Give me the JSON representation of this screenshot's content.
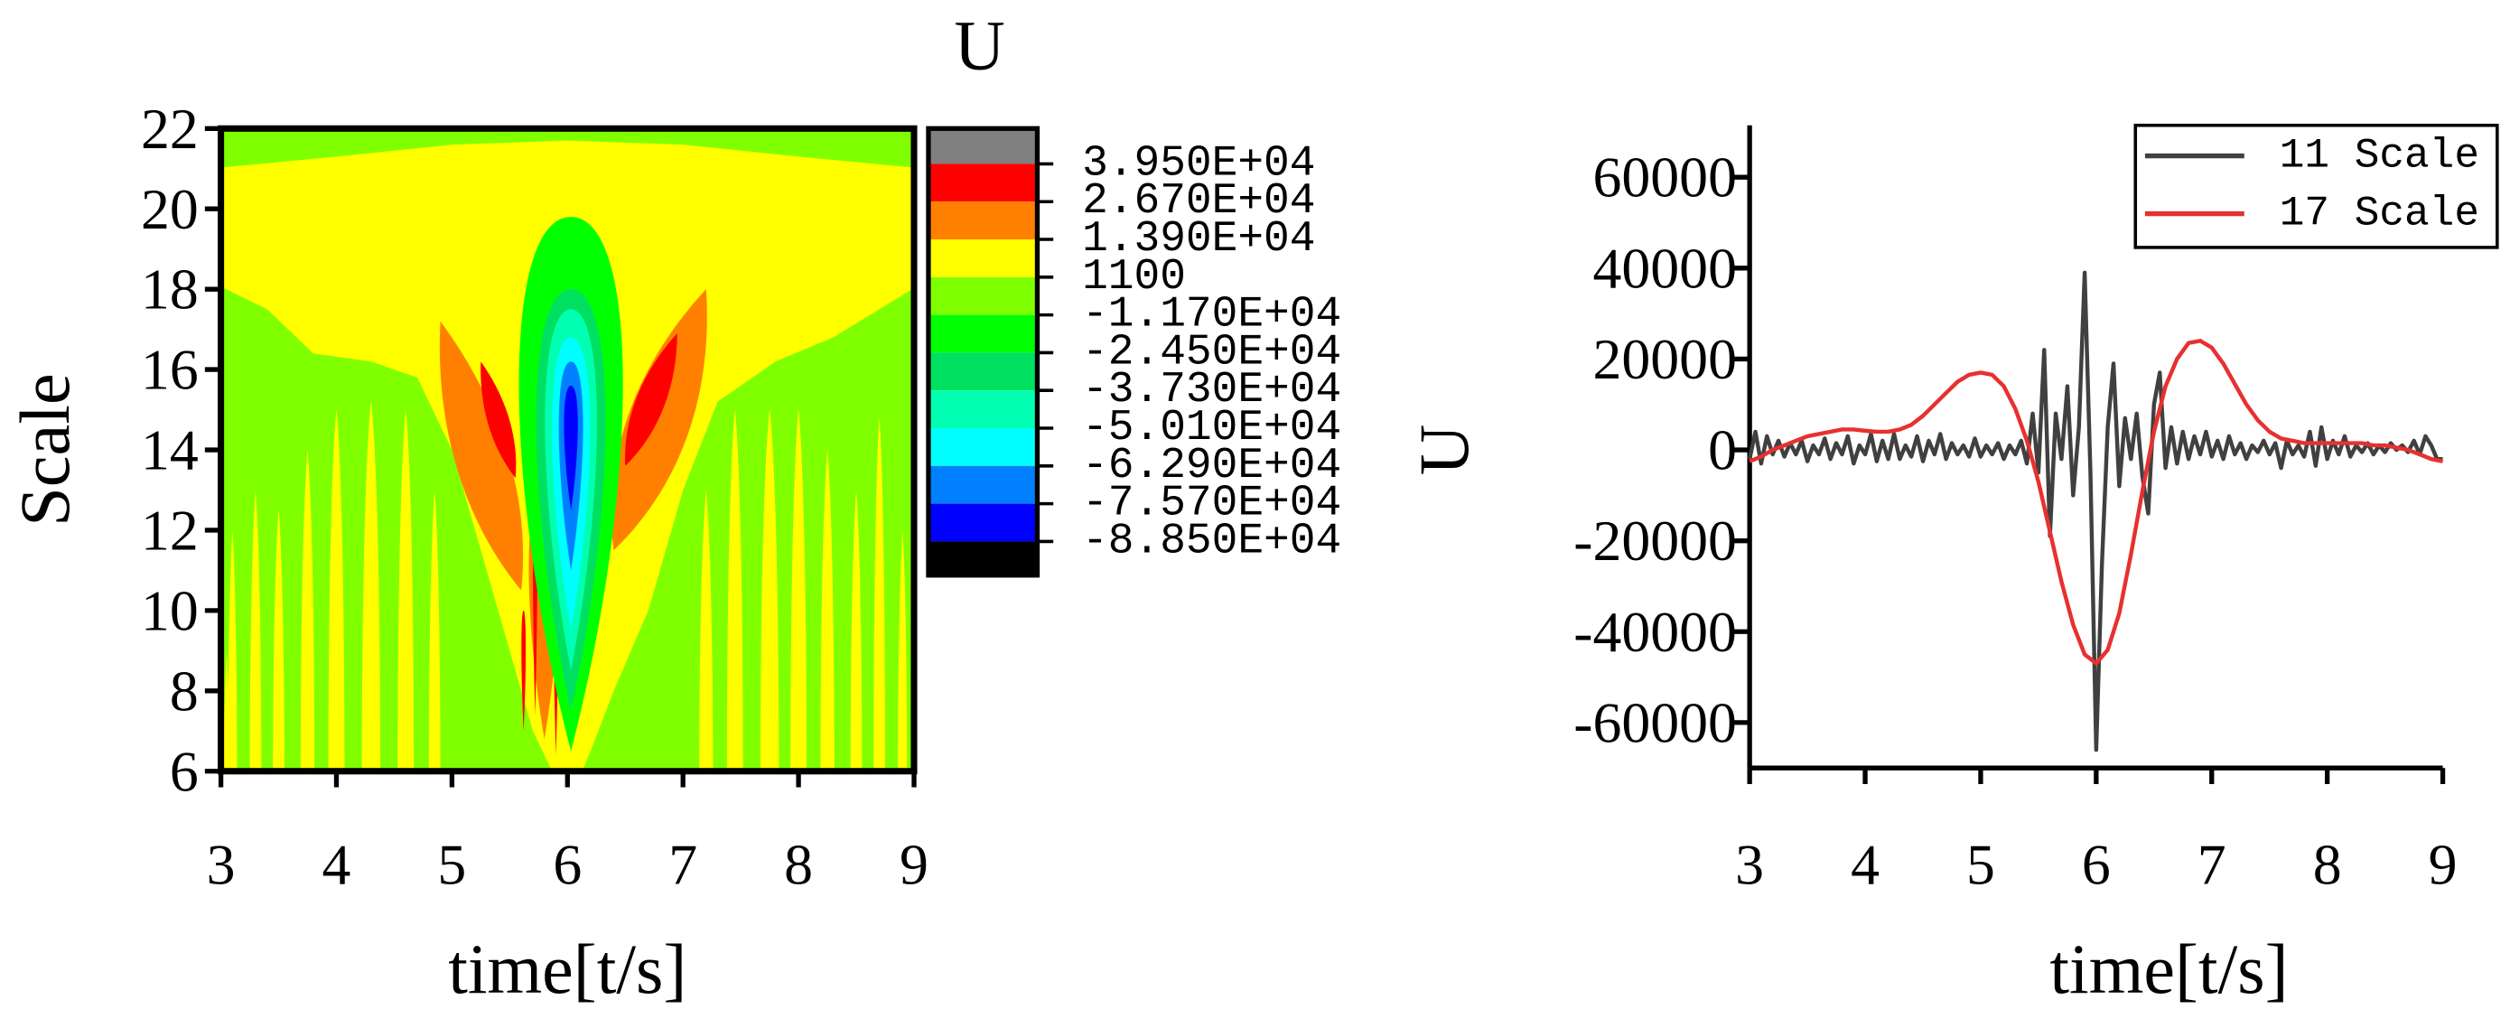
{
  "chart_data": [
    {
      "type": "contour",
      "colorbar_title": "U",
      "xlabel": "time[t/s]",
      "ylabel": "Scale",
      "xlim": [
        3,
        9
      ],
      "xticks": [
        3,
        4,
        5,
        6,
        7,
        8,
        9
      ],
      "ylim": [
        6,
        22
      ],
      "yticks": [
        6,
        8,
        10,
        12,
        14,
        16,
        18,
        20,
        22
      ],
      "levels": [
        {
          "value": 39500,
          "label": "3.950E+04"
        },
        {
          "value": 26700,
          "label": "2.670E+04"
        },
        {
          "value": 13900,
          "label": "1.390E+04"
        },
        1100,
        {
          "value": -11700,
          "label": "-1.170E+04"
        },
        {
          "value": -24500,
          "label": "-2.450E+04"
        },
        {
          "value": -37300,
          "label": "-3.730E+04"
        },
        {
          "value": -50100,
          "label": "-5.010E+04"
        },
        {
          "value": -62900,
          "label": "-6.290E+04"
        },
        {
          "value": -75700,
          "label": "-7.570E+04"
        },
        {
          "value": -88500,
          "label": "-8.850E+04"
        }
      ],
      "colors": [
        "#808080",
        "#ff0000",
        "#ff8000",
        "#ffff00",
        "#80ff00",
        "#00ff00",
        "#00e060",
        "#00ffb0",
        "#00ffff",
        "#0080ff",
        "#0000ff",
        "#000000"
      ]
    },
    {
      "type": "line",
      "xlabel": "time[t/s]",
      "ylabel": "U",
      "xlim": [
        3,
        9
      ],
      "xticks": [
        3,
        4,
        5,
        6,
        7,
        8,
        9
      ],
      "ylim": [
        -70000,
        70000
      ],
      "yticks": [
        -60000,
        -40000,
        -20000,
        0,
        20000,
        40000,
        60000
      ],
      "legend": "upper right",
      "series": [
        {
          "name": "11 Scale",
          "color": "#404040",
          "x": [
            3.0,
            3.05,
            3.1,
            3.15,
            3.2,
            3.25,
            3.3,
            3.35,
            3.4,
            3.45,
            3.5,
            3.55,
            3.6,
            3.65,
            3.7,
            3.75,
            3.8,
            3.85,
            3.9,
            3.95,
            4.0,
            4.05,
            4.1,
            4.15,
            4.2,
            4.25,
            4.3,
            4.35,
            4.4,
            4.45,
            4.5,
            4.55,
            4.6,
            4.65,
            4.7,
            4.75,
            4.8,
            4.85,
            4.9,
            4.95,
            5.0,
            5.05,
            5.1,
            5.15,
            5.2,
            5.25,
            5.3,
            5.35,
            5.4,
            5.45,
            5.5,
            5.55,
            5.6,
            5.65,
            5.7,
            5.75,
            5.8,
            5.85,
            5.9,
            5.95,
            6.0,
            6.05,
            6.1,
            6.15,
            6.2,
            6.25,
            6.3,
            6.35,
            6.4,
            6.45,
            6.5,
            6.55,
            6.6,
            6.65,
            6.7,
            6.75,
            6.8,
            6.85,
            6.9,
            6.95,
            7.0,
            7.05,
            7.1,
            7.15,
            7.2,
            7.25,
            7.3,
            7.35,
            7.4,
            7.45,
            7.5,
            7.55,
            7.6,
            7.65,
            7.7,
            7.75,
            7.8,
            7.85,
            7.9,
            7.95,
            8.0,
            8.05,
            8.1,
            8.15,
            8.2,
            8.25,
            8.3,
            8.35,
            8.4,
            8.45,
            8.5,
            8.55,
            8.6,
            8.65,
            8.7,
            8.75,
            8.8,
            8.85,
            8.9,
            8.95,
            9.0
          ],
          "values": [
            -2000,
            4000,
            -3000,
            3000,
            -1000,
            2000,
            -1500,
            1500,
            -1000,
            2000,
            -2500,
            1000,
            -1000,
            2500,
            -2000,
            1500,
            -1000,
            3000,
            -3000,
            1000,
            -1000,
            3500,
            -2500,
            2000,
            -2000,
            3500,
            -2000,
            1000,
            -1500,
            3000,
            -2500,
            2000,
            -1000,
            3500,
            -2000,
            1500,
            -1000,
            1000,
            -1500,
            2500,
            -1500,
            1000,
            -1000,
            1500,
            -2000,
            1000,
            -1000,
            2000,
            -3000,
            8000,
            -5000,
            22000,
            -19000,
            8000,
            -2000,
            14000,
            -10000,
            5000,
            39000,
            -5000,
            -66000,
            -25000,
            5000,
            19000,
            -8000,
            7000,
            -2000,
            8000,
            -6000,
            -14000,
            10000,
            17000,
            -4000,
            5000,
            -3000,
            4000,
            -2000,
            3000,
            -1000,
            4000,
            -1500,
            2000,
            -2000,
            3000,
            -1000,
            1500,
            -2000,
            1000,
            -500,
            2000,
            -1000,
            1500,
            -4000,
            2000,
            -1000,
            1000,
            -1500,
            4000,
            -3500,
            5000,
            -2000,
            2000,
            -1000,
            3000,
            -1500,
            1000,
            -500,
            1500,
            -1000,
            1000,
            -500,
            1500,
            0,
            1000,
            -500,
            2000,
            -1000,
            3000,
            1000,
            -2000,
            -2000
          ]
        },
        {
          "name": "17 Scale",
          "color": "#e83030",
          "x": [
            3.0,
            3.1,
            3.2,
            3.3,
            3.4,
            3.5,
            3.6,
            3.7,
            3.8,
            3.9,
            4.0,
            4.1,
            4.2,
            4.3,
            4.4,
            4.5,
            4.6,
            4.7,
            4.8,
            4.9,
            5.0,
            5.1,
            5.2,
            5.3,
            5.4,
            5.5,
            5.6,
            5.7,
            5.8,
            5.9,
            6.0,
            6.1,
            6.2,
            6.3,
            6.4,
            6.5,
            6.6,
            6.7,
            6.8,
            6.9,
            7.0,
            7.1,
            7.2,
            7.3,
            7.4,
            7.5,
            7.6,
            7.7,
            7.8,
            7.9,
            8.0,
            8.1,
            8.2,
            8.3,
            8.4,
            8.5,
            8.6,
            8.7,
            8.8,
            8.9,
            9.0
          ],
          "values": [
            -2500,
            -1500,
            0,
            1000,
            2000,
            3000,
            3500,
            4000,
            4500,
            4500,
            4200,
            4000,
            4000,
            4500,
            5500,
            7500,
            10000,
            12500,
            15000,
            16500,
            17000,
            16500,
            14000,
            9000,
            2000,
            -7000,
            -18000,
            -29000,
            -38500,
            -45000,
            -47000,
            -44000,
            -36000,
            -23000,
            -9000,
            4000,
            14000,
            20000,
            23500,
            24000,
            22500,
            19000,
            14500,
            10000,
            6500,
            4000,
            2500,
            2000,
            1500,
            1500,
            1500,
            1500,
            1500,
            1500,
            1000,
            1000,
            500,
            0,
            -1000,
            -2000,
            -2500
          ]
        }
      ]
    }
  ]
}
